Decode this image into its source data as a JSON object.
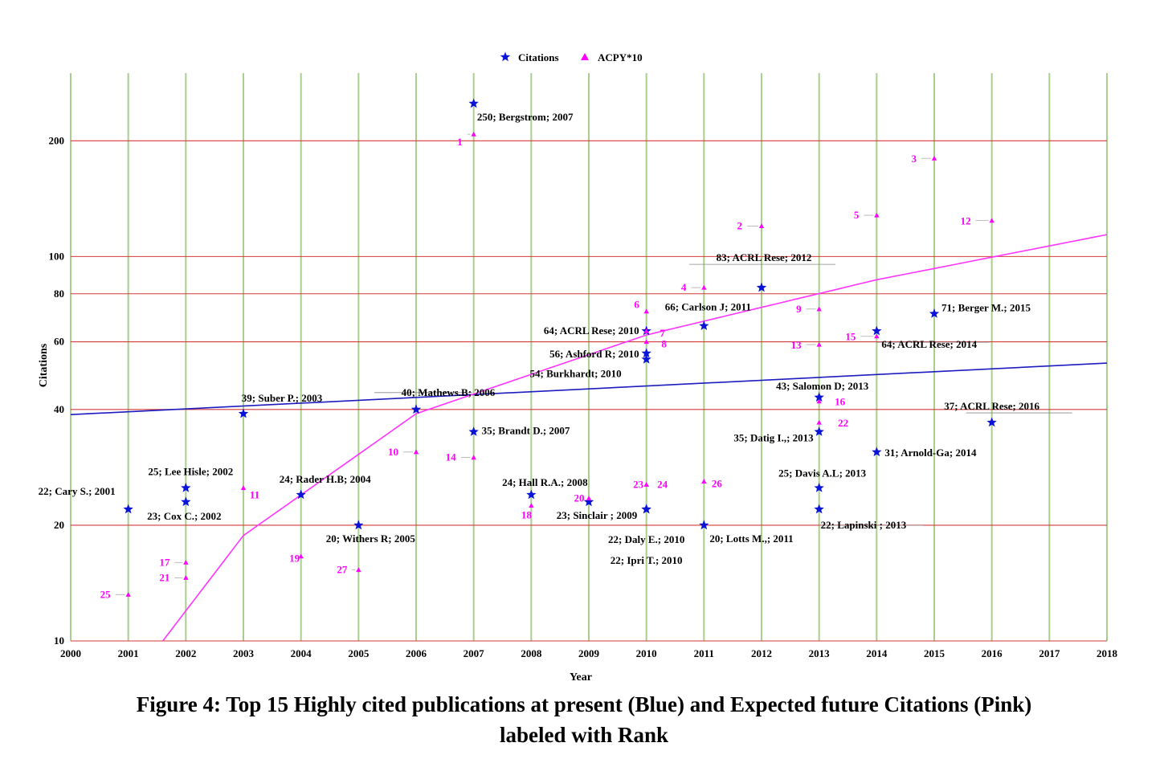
{
  "chart_data": {
    "type": "scatter",
    "title": "",
    "xlabel": "Year",
    "ylabel": "Citations",
    "xlim": [
      2000,
      2018
    ],
    "ylim": [
      10,
      300
    ],
    "y_scale": "log",
    "x_ticks": [
      "2000",
      "2001",
      "2002",
      "2003",
      "2004",
      "2005",
      "2006",
      "2007",
      "2008",
      "2009",
      "2010",
      "2011",
      "2012",
      "2013",
      "2014",
      "2015",
      "2016",
      "2017",
      "2018"
    ],
    "y_ticks": [
      "10",
      "20",
      "40",
      "60",
      "80",
      "100",
      "200"
    ],
    "grid": true,
    "legend": {
      "placement": "top-center",
      "entries": [
        "Citations",
        "ACPY*10"
      ]
    },
    "colors": {
      "citations": "#0a14d6",
      "acpy": "#ff00ff",
      "vgrid": "#a8cf8d",
      "hgrid": "#d43a3a",
      "trend_citations": "#1c1cbf",
      "trend_acpy": "#ff33ff"
    },
    "series": [
      {
        "name": "Citations",
        "marker": "star",
        "points": [
          {
            "x": 2001,
            "y": 22,
            "label": "22; Cary S.; 2001"
          },
          {
            "x": 2002,
            "y": 25,
            "label": "25; Lee Hisle; 2002"
          },
          {
            "x": 2002,
            "y": 23,
            "label": "23; Cox C.; 2002"
          },
          {
            "x": 2003,
            "y": 39,
            "label": "39; Suber P.; 2003"
          },
          {
            "x": 2004,
            "y": 24,
            "label": "24; Rader H.B; 2004"
          },
          {
            "x": 2005,
            "y": 20,
            "label": "20; Withers R; 2005"
          },
          {
            "x": 2006,
            "y": 40,
            "label": "40; Mathews.B; 2006"
          },
          {
            "x": 2007,
            "y": 250,
            "label": "250; Bergstrom; 2007"
          },
          {
            "x": 2007,
            "y": 35,
            "label": "35; Brandt D.; 2007"
          },
          {
            "x": 2008,
            "y": 24,
            "label": "24; Hall R.A.; 2008"
          },
          {
            "x": 2009,
            "y": 23,
            "label": "23; Sinclair ; 2009"
          },
          {
            "x": 2010,
            "y": 64,
            "label": "64; ACRL Rese; 2010"
          },
          {
            "x": 2010,
            "y": 56,
            "label": "56; Ashford R; 2010"
          },
          {
            "x": 2010,
            "y": 54,
            "label": "54; Burkhardt; 2010"
          },
          {
            "x": 2010,
            "y": 22,
            "label": "22; Daly E.; 2010"
          },
          {
            "x": 2010,
            "y": 22,
            "label": "22; Ipri T.; 2010"
          },
          {
            "x": 2011,
            "y": 66,
            "label": "66; Carlson J; 2011"
          },
          {
            "x": 2011,
            "y": 20,
            "label": "20; Lotts M.,; 2011"
          },
          {
            "x": 2012,
            "y": 83,
            "label": "83; ACRL Rese; 2012"
          },
          {
            "x": 2013,
            "y": 43,
            "label": "43; Salomon D; 2013"
          },
          {
            "x": 2013,
            "y": 35,
            "label": "35; Datig I.,; 2013"
          },
          {
            "x": 2013,
            "y": 25,
            "label": "25; Davis A.L; 2013"
          },
          {
            "x": 2013,
            "y": 22,
            "label": "22; Lapinski ; 2013"
          },
          {
            "x": 2014,
            "y": 64,
            "label": "64; ACRL Rese; 2014"
          },
          {
            "x": 2014,
            "y": 31,
            "label": "31; Arnold-Ga; 2014"
          },
          {
            "x": 2015,
            "y": 71,
            "label": "71; Berger M.; 2015"
          },
          {
            "x": 2016,
            "y": 37,
            "label": "37; ACRL Rese; 2016"
          }
        ]
      },
      {
        "name": "ACPY*10",
        "marker": "triangle",
        "points": [
          {
            "x": 2007,
            "y": 208,
            "label": "1"
          },
          {
            "x": 2012,
            "y": 120,
            "label": "2"
          },
          {
            "x": 2015,
            "y": 180,
            "label": "3"
          },
          {
            "x": 2011,
            "y": 83,
            "label": "4"
          },
          {
            "x": 2014,
            "y": 128,
            "label": "5"
          },
          {
            "x": 2010,
            "y": 72,
            "label": "6"
          },
          {
            "x": 2010,
            "y": 64,
            "label": "7"
          },
          {
            "x": 2010,
            "y": 60,
            "label": "8"
          },
          {
            "x": 2013,
            "y": 73,
            "label": "9"
          },
          {
            "x": 2006,
            "y": 31,
            "label": "10"
          },
          {
            "x": 2003,
            "y": 25,
            "label": "11"
          },
          {
            "x": 2016,
            "y": 124,
            "label": "12"
          },
          {
            "x": 2013,
            "y": 59,
            "label": "13"
          },
          {
            "x": 2007,
            "y": 30,
            "label": "14"
          },
          {
            "x": 2014,
            "y": 62,
            "label": "15"
          },
          {
            "x": 2013,
            "y": 42,
            "label": "16"
          },
          {
            "x": 2002,
            "y": 16,
            "label": "17"
          },
          {
            "x": 2008,
            "y": 22.5,
            "label": "18"
          },
          {
            "x": 2004,
            "y": 16.6,
            "label": "19"
          },
          {
            "x": 2009,
            "y": 23.5,
            "label": "20"
          },
          {
            "x": 2002,
            "y": 14.6,
            "label": "21"
          },
          {
            "x": 2013,
            "y": 37,
            "label": "22"
          },
          {
            "x": 2010,
            "y": 25.5,
            "label": "23"
          },
          {
            "x": 2010,
            "y": 25.5,
            "label": "24"
          },
          {
            "x": 2001,
            "y": 13.2,
            "label": "25"
          },
          {
            "x": 2011,
            "y": 26,
            "label": "26"
          },
          {
            "x": 2005,
            "y": 15.3,
            "label": "27"
          }
        ]
      }
    ],
    "trendlines": [
      {
        "series": "Citations",
        "type": "exponential",
        "points": [
          [
            2000,
            38.8
          ],
          [
            2018,
            52.8
          ]
        ]
      },
      {
        "series": "ACPY*10",
        "type": "logarithmic",
        "points": [
          [
            2001.6,
            10
          ],
          [
            2003,
            18.8
          ],
          [
            2006,
            39
          ],
          [
            2010,
            62.5
          ],
          [
            2014,
            87
          ],
          [
            2018,
            114
          ]
        ]
      }
    ]
  },
  "caption": {
    "line1": "Figure 4:  Top 15 Highly cited publications at present (Blue) and Expected future Citations (Pink)",
    "line2": "labeled with Rank"
  }
}
